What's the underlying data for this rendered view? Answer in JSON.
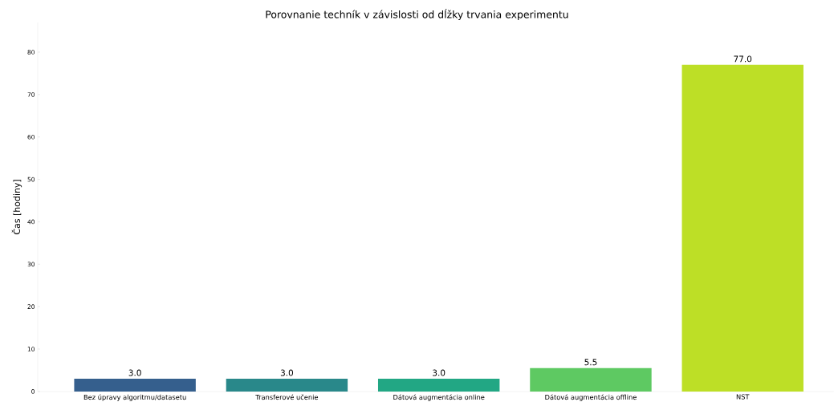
{
  "chart_data": {
    "type": "bar",
    "title": "Porovnanie techník v závislosti od dĺžky trvania experimentu",
    "ylabel": "Čas [hodiny]",
    "categories": [
      "Bez úpravy algoritmu/datasetu",
      "Transferové učenie",
      "Dátová augmentácia online",
      "Dátová augmentácia offline",
      "NST"
    ],
    "values": [
      3,
      3,
      3,
      5.5,
      77
    ],
    "colors": [
      "#355f8d",
      "#29888a",
      "#22a784",
      "#5ec962",
      "#bddf26"
    ],
    "value_labels": [
      "3.0",
      "3.0",
      "3.0",
      "5.5",
      "77.0"
    ],
    "ylim": [
      0,
      87
    ],
    "yticks": [
      0,
      10,
      20,
      30,
      40,
      50,
      60,
      70,
      80
    ],
    "grid": false
  }
}
